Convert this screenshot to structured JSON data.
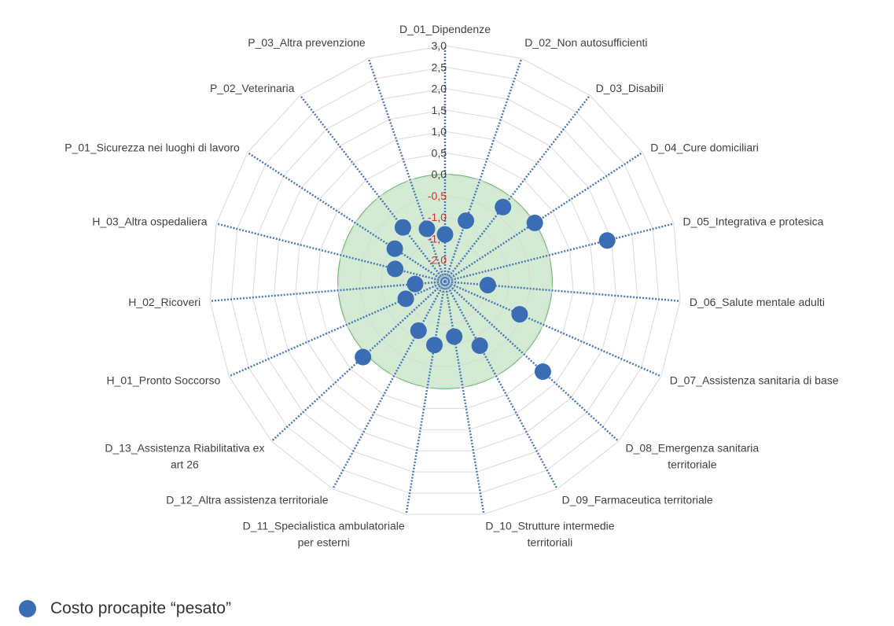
{
  "chart_data": {
    "type": "radar",
    "axes": [
      "D_01_Dipendenze",
      "D_02_Non autosufficienti",
      "D_03_Disabili",
      "D_04_Cure domiciliari",
      "D_05_Integrativa e protesica",
      "D_06_Salute mentale adulti",
      "D_07_Assistenza sanitaria di base",
      "D_08_Emergenza sanitaria|territoriale",
      "D_09_Farmaceutica territoriale",
      "D_10_Strutture intermedie|territoriali",
      "D_11_Specialistica ambulatoriale|per esterni",
      "D_12_Altra assistenza territoriale",
      "D_13_Assistenza Riabilitativa ex|art 26",
      "H_01_Pronto Soccorso",
      "H_02_Ricoveri",
      "H_03_Altra ospedaliera",
      "P_01_Sicurezza nei luoghi di lavoro",
      "P_02_Veterinaria",
      "P_03_Altra prevenzione"
    ],
    "tick_labels": [
      "3,0",
      "2,5",
      "2,0",
      "1,5",
      "1,0",
      "0,5",
      "0,0",
      "-0,5",
      "-1,0",
      "-1,5",
      "-2,0"
    ],
    "range": [
      -2.5,
      3.0
    ],
    "band_max": 0.0,
    "series": [
      {
        "name": "Costo procapite “pesato”",
        "color": "#3b6db4",
        "values": [
          -1.4,
          -1.0,
          -0.3,
          0.0,
          1.4,
          -1.5,
          -0.6,
          0.6,
          -0.8,
          -1.2,
          -1.0,
          -1.2,
          0.1,
          -1.5,
          -1.8,
          -1.3,
          -1.1,
          -0.9,
          -1.2
        ]
      }
    ],
    "legend_position": "bottom-left"
  },
  "legend": {
    "label": "Costo procapite “pesato”"
  },
  "colors": {
    "band_fill": "#cfe8cf",
    "band_stroke": "#4caf50",
    "grid": "#d9d9d9",
    "axis": "#4a78b8",
    "marker": "#3b6db4",
    "negative_tick": "#d0312d"
  }
}
